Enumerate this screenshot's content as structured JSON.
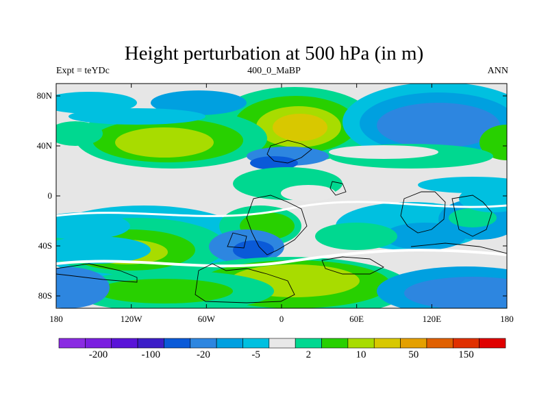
{
  "title": "Height perturbation at 500 hPa (in m)",
  "subtitle_left": "Expt = teYDc",
  "subtitle_center": "400_0_MaBP",
  "subtitle_right": "ANN",
  "colors": {
    "background": "#e6e6e6",
    "palette": [
      "#8a2be2",
      "#7a1fe0",
      "#5a14d8",
      "#3c1ec8",
      "#0a5ad8",
      "#2d86e0",
      "#00a0e0",
      "#00c0e0",
      "#e8e8e8",
      "#00d890",
      "#28d000",
      "#a8dc00",
      "#d8c800",
      "#e4a000",
      "#e06000",
      "#e03000",
      "#e00000"
    ],
    "coast": "#000000"
  },
  "map": {
    "lon_ticks": [
      "180",
      "120W",
      "60W",
      "0",
      "60E",
      "120E",
      "180"
    ],
    "lat_ticks": [
      "80N",
      "40N",
      "0",
      "40S",
      "80S"
    ]
  },
  "legend": {
    "labels": [
      "-200",
      "-100",
      "-20",
      "-5",
      "2",
      "10",
      "50",
      "150"
    ]
  }
}
